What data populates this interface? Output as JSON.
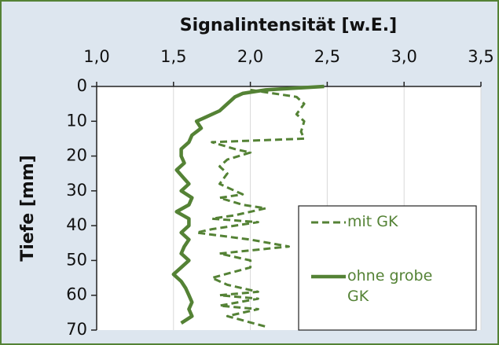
{
  "chart_data": {
    "type": "line",
    "title": "Signalintensität [w.E.]",
    "y_label": "Tiefe [mm]",
    "xlim": [
      1,
      3.5
    ],
    "xticks": [
      {
        "value": 1,
        "label": "1,0"
      },
      {
        "value": 1.5,
        "label": "1,5"
      },
      {
        "value": 2,
        "label": "2,0"
      },
      {
        "value": 2.5,
        "label": "2,5"
      },
      {
        "value": 3,
        "label": "3,0"
      },
      {
        "value": 3.5,
        "label": "3,5"
      }
    ],
    "ylim": [
      0,
      70
    ],
    "yticks": [
      0,
      10,
      20,
      30,
      40,
      50,
      60,
      70
    ],
    "y_inverted": true,
    "grid": true,
    "legend": "lower right",
    "series": [
      {
        "name": "mit GK",
        "color": "#548235",
        "dash": true,
        "y": [
          1,
          3,
          5,
          8,
          10,
          13,
          15,
          16,
          18,
          19,
          21,
          23,
          25,
          28,
          30,
          31,
          32,
          34,
          35,
          37,
          38,
          39,
          41,
          42,
          44,
          46,
          48,
          50,
          52,
          55,
          57,
          59,
          60,
          61,
          63,
          64,
          66,
          69
        ],
        "values": [
          2.0,
          2.3,
          2.35,
          2.3,
          2.35,
          2.33,
          2.35,
          1.75,
          1.9,
          2.0,
          1.85,
          1.8,
          1.85,
          1.8,
          1.9,
          1.95,
          1.8,
          1.95,
          2.1,
          1.9,
          1.75,
          2.05,
          1.75,
          1.65,
          2.0,
          2.25,
          1.8,
          2.0,
          2.0,
          1.75,
          1.85,
          2.05,
          1.8,
          2.05,
          1.8,
          2.05,
          1.85,
          2.1
        ]
      },
      {
        "name": "ohne grobe GK",
        "color": "#548235",
        "dash": false,
        "y": [
          0,
          1,
          2,
          3,
          5,
          7,
          9,
          10,
          12,
          14,
          16,
          18,
          20,
          22,
          24,
          26,
          28,
          30,
          32,
          34,
          36,
          38,
          40,
          42,
          44,
          46,
          48,
          50,
          52,
          54,
          56,
          58,
          60,
          62,
          64,
          66,
          68
        ],
        "values": [
          2.48,
          2.1,
          1.95,
          1.9,
          1.85,
          1.8,
          1.7,
          1.65,
          1.68,
          1.62,
          1.6,
          1.55,
          1.55,
          1.57,
          1.52,
          1.56,
          1.6,
          1.55,
          1.62,
          1.6,
          1.52,
          1.6,
          1.6,
          1.55,
          1.6,
          1.57,
          1.55,
          1.6,
          1.55,
          1.5,
          1.55,
          1.58,
          1.6,
          1.62,
          1.6,
          1.62,
          1.55
        ]
      }
    ]
  }
}
